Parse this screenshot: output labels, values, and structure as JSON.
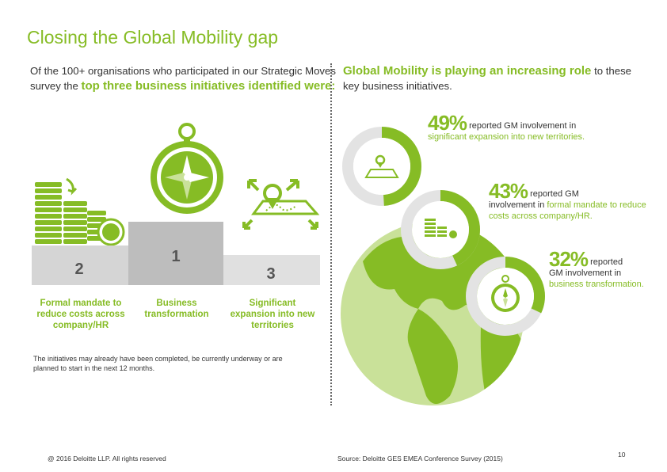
{
  "title": "Closing the Global Mobility gap",
  "left_intro": {
    "line1": "Of the 100+ organisations who participated in our Strategic Moves",
    "line2_plain": "survey the ",
    "line2_highlight": "top three business initiatives identified were:"
  },
  "right_intro": {
    "highlight": "Global Mobility is playing an increasing role",
    "plain1": " to these",
    "line2": "key business initiatives."
  },
  "podium": {
    "first": "1",
    "second": "2",
    "third": "3"
  },
  "initiatives": {
    "second_label": "Formal mandate to reduce costs across company/HR",
    "first_label": "Business transformation",
    "third_label": "Significant expansion into new territories"
  },
  "note": "The initiatives may already have been completed, be currently underway or are planned to start in the next 12 months.",
  "stats": [
    {
      "percent": "49%",
      "text_plain": "reported GM involvement in",
      "text_green": "significant expansion into new territories.",
      "value": 49
    },
    {
      "percent": "43%",
      "text_plain": "reported GM",
      "text_plain2": "involvement in ",
      "text_green": "formal mandate to reduce costs across company/HR.",
      "value": 43
    },
    {
      "percent": "32%",
      "text_plain": "reported",
      "text_plain2": "GM involvement in",
      "text_green": "business transformation.",
      "value": 32
    }
  ],
  "colors": {
    "accent": "#86bc25",
    "light_green": "#c9e199",
    "podium_grey": "#d5d5d5",
    "podium_first": "#bdbdbd",
    "ring_grey": "#e3e3e3"
  },
  "footer": {
    "copyright": "@ 2016 Deloitte LLP. All rights reserved",
    "source": "Source: Deloitte GES EMEA Conference Survey (2015)",
    "page": "10"
  }
}
